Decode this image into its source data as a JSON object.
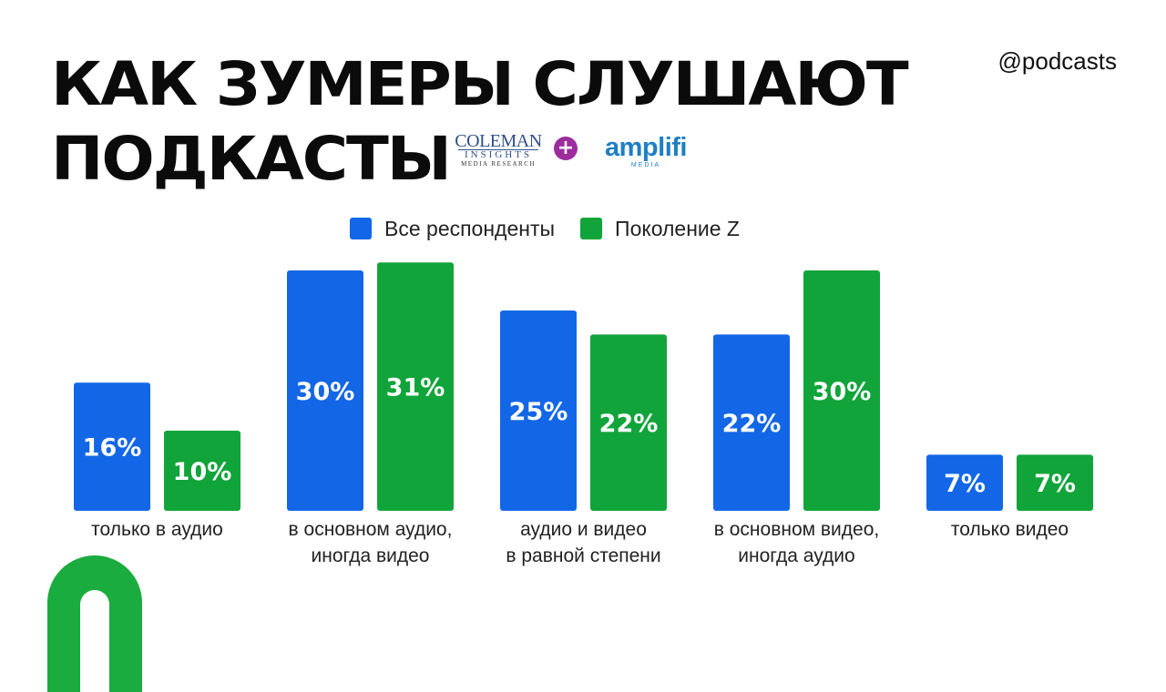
{
  "header": {
    "title_line1": "КАК ЗУМЕРЫ СЛУШАЮТ",
    "title_line2": "ПОДКАСТЫ",
    "handle": "@podcasts"
  },
  "logos": {
    "coleman_line1": "COLEMAN",
    "coleman_line2": "INSIGHTS",
    "coleman_line3": "MEDIA RESEARCH",
    "plus_symbol": "+",
    "amplifi": "amplifi",
    "amplifi_sub": "MEDIA"
  },
  "colors": {
    "all_respondents": "#1367e6",
    "gen_z": "#11a43a",
    "deco_green": "#1aac3e"
  },
  "chart_data": {
    "type": "bar",
    "categories": [
      [
        "только в аудио"
      ],
      [
        "в основном аудио,",
        "иногда видео"
      ],
      [
        "аудио и видео",
        "в равной степени"
      ],
      [
        "в основном видео,",
        "иногда аудио"
      ],
      [
        "только видео"
      ]
    ],
    "series": [
      {
        "name": "Все респонденты",
        "values": [
          16,
          30,
          25,
          22,
          7
        ],
        "labels": [
          "16%",
          "30%",
          "25%",
          "22%",
          "7%"
        ],
        "color": "#1367e6"
      },
      {
        "name": "Поколение Z",
        "values": [
          10,
          31,
          22,
          30,
          7
        ],
        "labels": [
          "10%",
          "31%",
          "22%",
          "30%",
          "7%"
        ],
        "color": "#11a43a"
      }
    ],
    "unit": "%",
    "ylim": [
      0,
      32
    ],
    "legend_position": "top-center",
    "grid": false
  }
}
